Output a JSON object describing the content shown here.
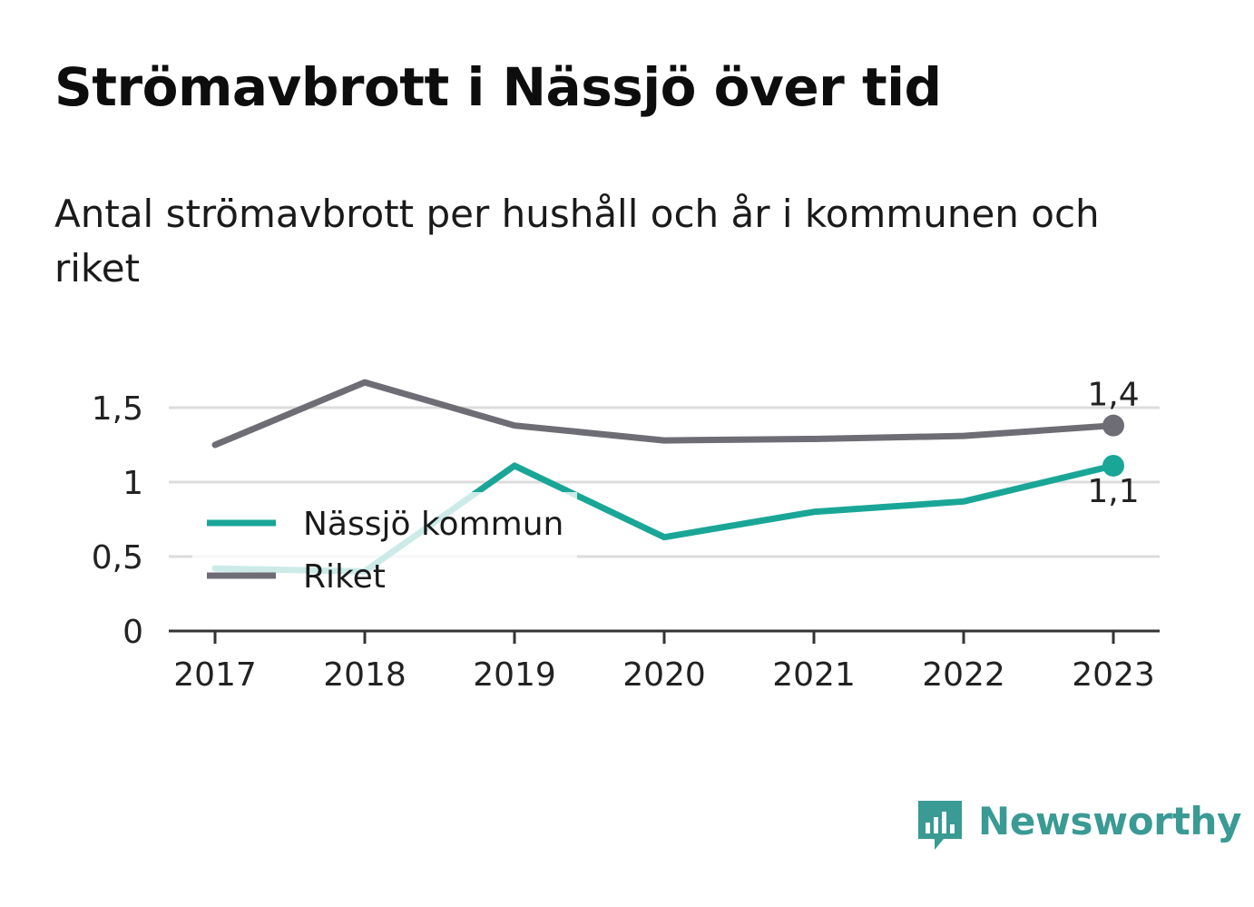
{
  "brand": {
    "name": "Newsworthy"
  },
  "chart_data": {
    "type": "line",
    "title": "Strömavbrott i Nässjö över tid",
    "subtitle": "Antal strömavbrott per hushåll och år i kommunen och riket",
    "x": [
      "2017",
      "2018",
      "2019",
      "2020",
      "2021",
      "2022",
      "2023"
    ],
    "y_ticks": [
      {
        "value": 0,
        "label": "0"
      },
      {
        "value": 0.5,
        "label": "0,5"
      },
      {
        "value": 1,
        "label": "1"
      },
      {
        "value": 1.5,
        "label": "1,5"
      }
    ],
    "ylim": [
      0,
      1.5
    ],
    "grid": true,
    "legend": "bottom-left",
    "series": [
      {
        "name": "Nässjö kommun",
        "color": "#1aa697",
        "values": [
          0.42,
          0.4,
          1.11,
          0.63,
          0.8,
          0.87,
          1.11
        ],
        "end_label": "1,1"
      },
      {
        "name": "Riket",
        "color": "#6e6d75",
        "values": [
          1.25,
          1.67,
          1.38,
          1.28,
          1.29,
          1.31,
          1.38
        ],
        "end_label": "1,4"
      }
    ]
  }
}
